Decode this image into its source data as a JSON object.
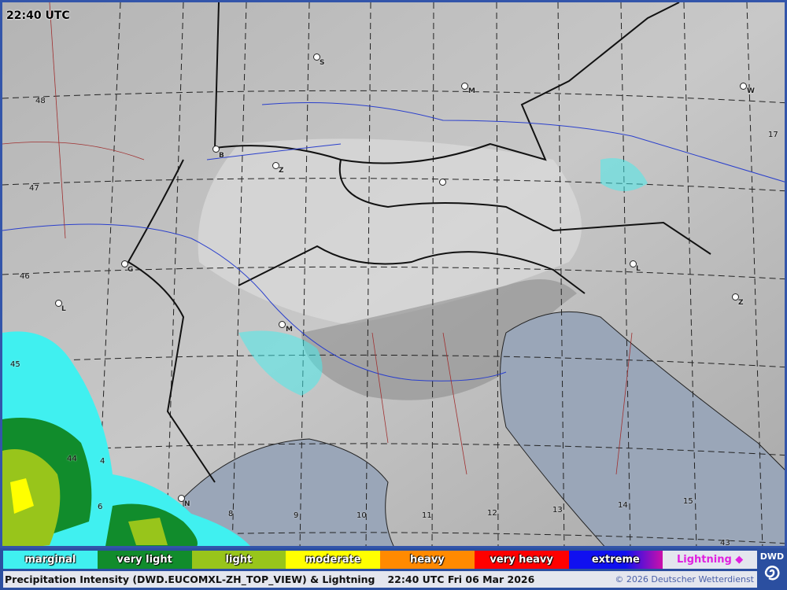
{
  "timestamp": "22:40 UTC",
  "colors": {
    "marginal": "#40f0f0",
    "very_light": "#10902a",
    "light": "#99c41a",
    "moderate": "#ffff00",
    "heavy": "#ff8800",
    "very_heavy": "#ff0000",
    "extreme": "#1010ee",
    "extreme_b": "#cc10aa",
    "lightning": "#e020e0",
    "frame": "#2b4fa0",
    "sea": "#9aa6b8"
  },
  "legend": [
    {
      "label": "marginal",
      "color": "#40f0f0"
    },
    {
      "label": "very light",
      "color": "#118c2c"
    },
    {
      "label": "light",
      "color": "#98c51b"
    },
    {
      "label": "moderate",
      "color": "#ffff00"
    },
    {
      "label": "heavy",
      "color": "#ff8a00"
    },
    {
      "label": "very heavy",
      "color": "#ff0000"
    },
    {
      "label": "extreme",
      "color": "#1010f0"
    },
    {
      "label": "Lightning ◆",
      "color": "#e4e6ee"
    }
  ],
  "footer": {
    "title": "Precipitation Intensity (DWD.EUCOMXL-ZH_TOP_VIEW) & Lightning",
    "datetime": "22:40 UTC Fri 06 Mar 2026",
    "copyright": "© 2026 Deutscher Wetterdienst",
    "logo": "DWD"
  },
  "latitude_labels": [
    "48",
    "47",
    "46",
    "45",
    "44",
    "43"
  ],
  "longitude_labels": [
    "4",
    "6",
    "8",
    "9",
    "10",
    "11",
    "12",
    "13",
    "14",
    "15",
    "17"
  ],
  "cities": [
    "S",
    "M",
    "W",
    "B",
    "Z",
    "G",
    "L",
    "M",
    "L",
    "Z",
    "N"
  ]
}
